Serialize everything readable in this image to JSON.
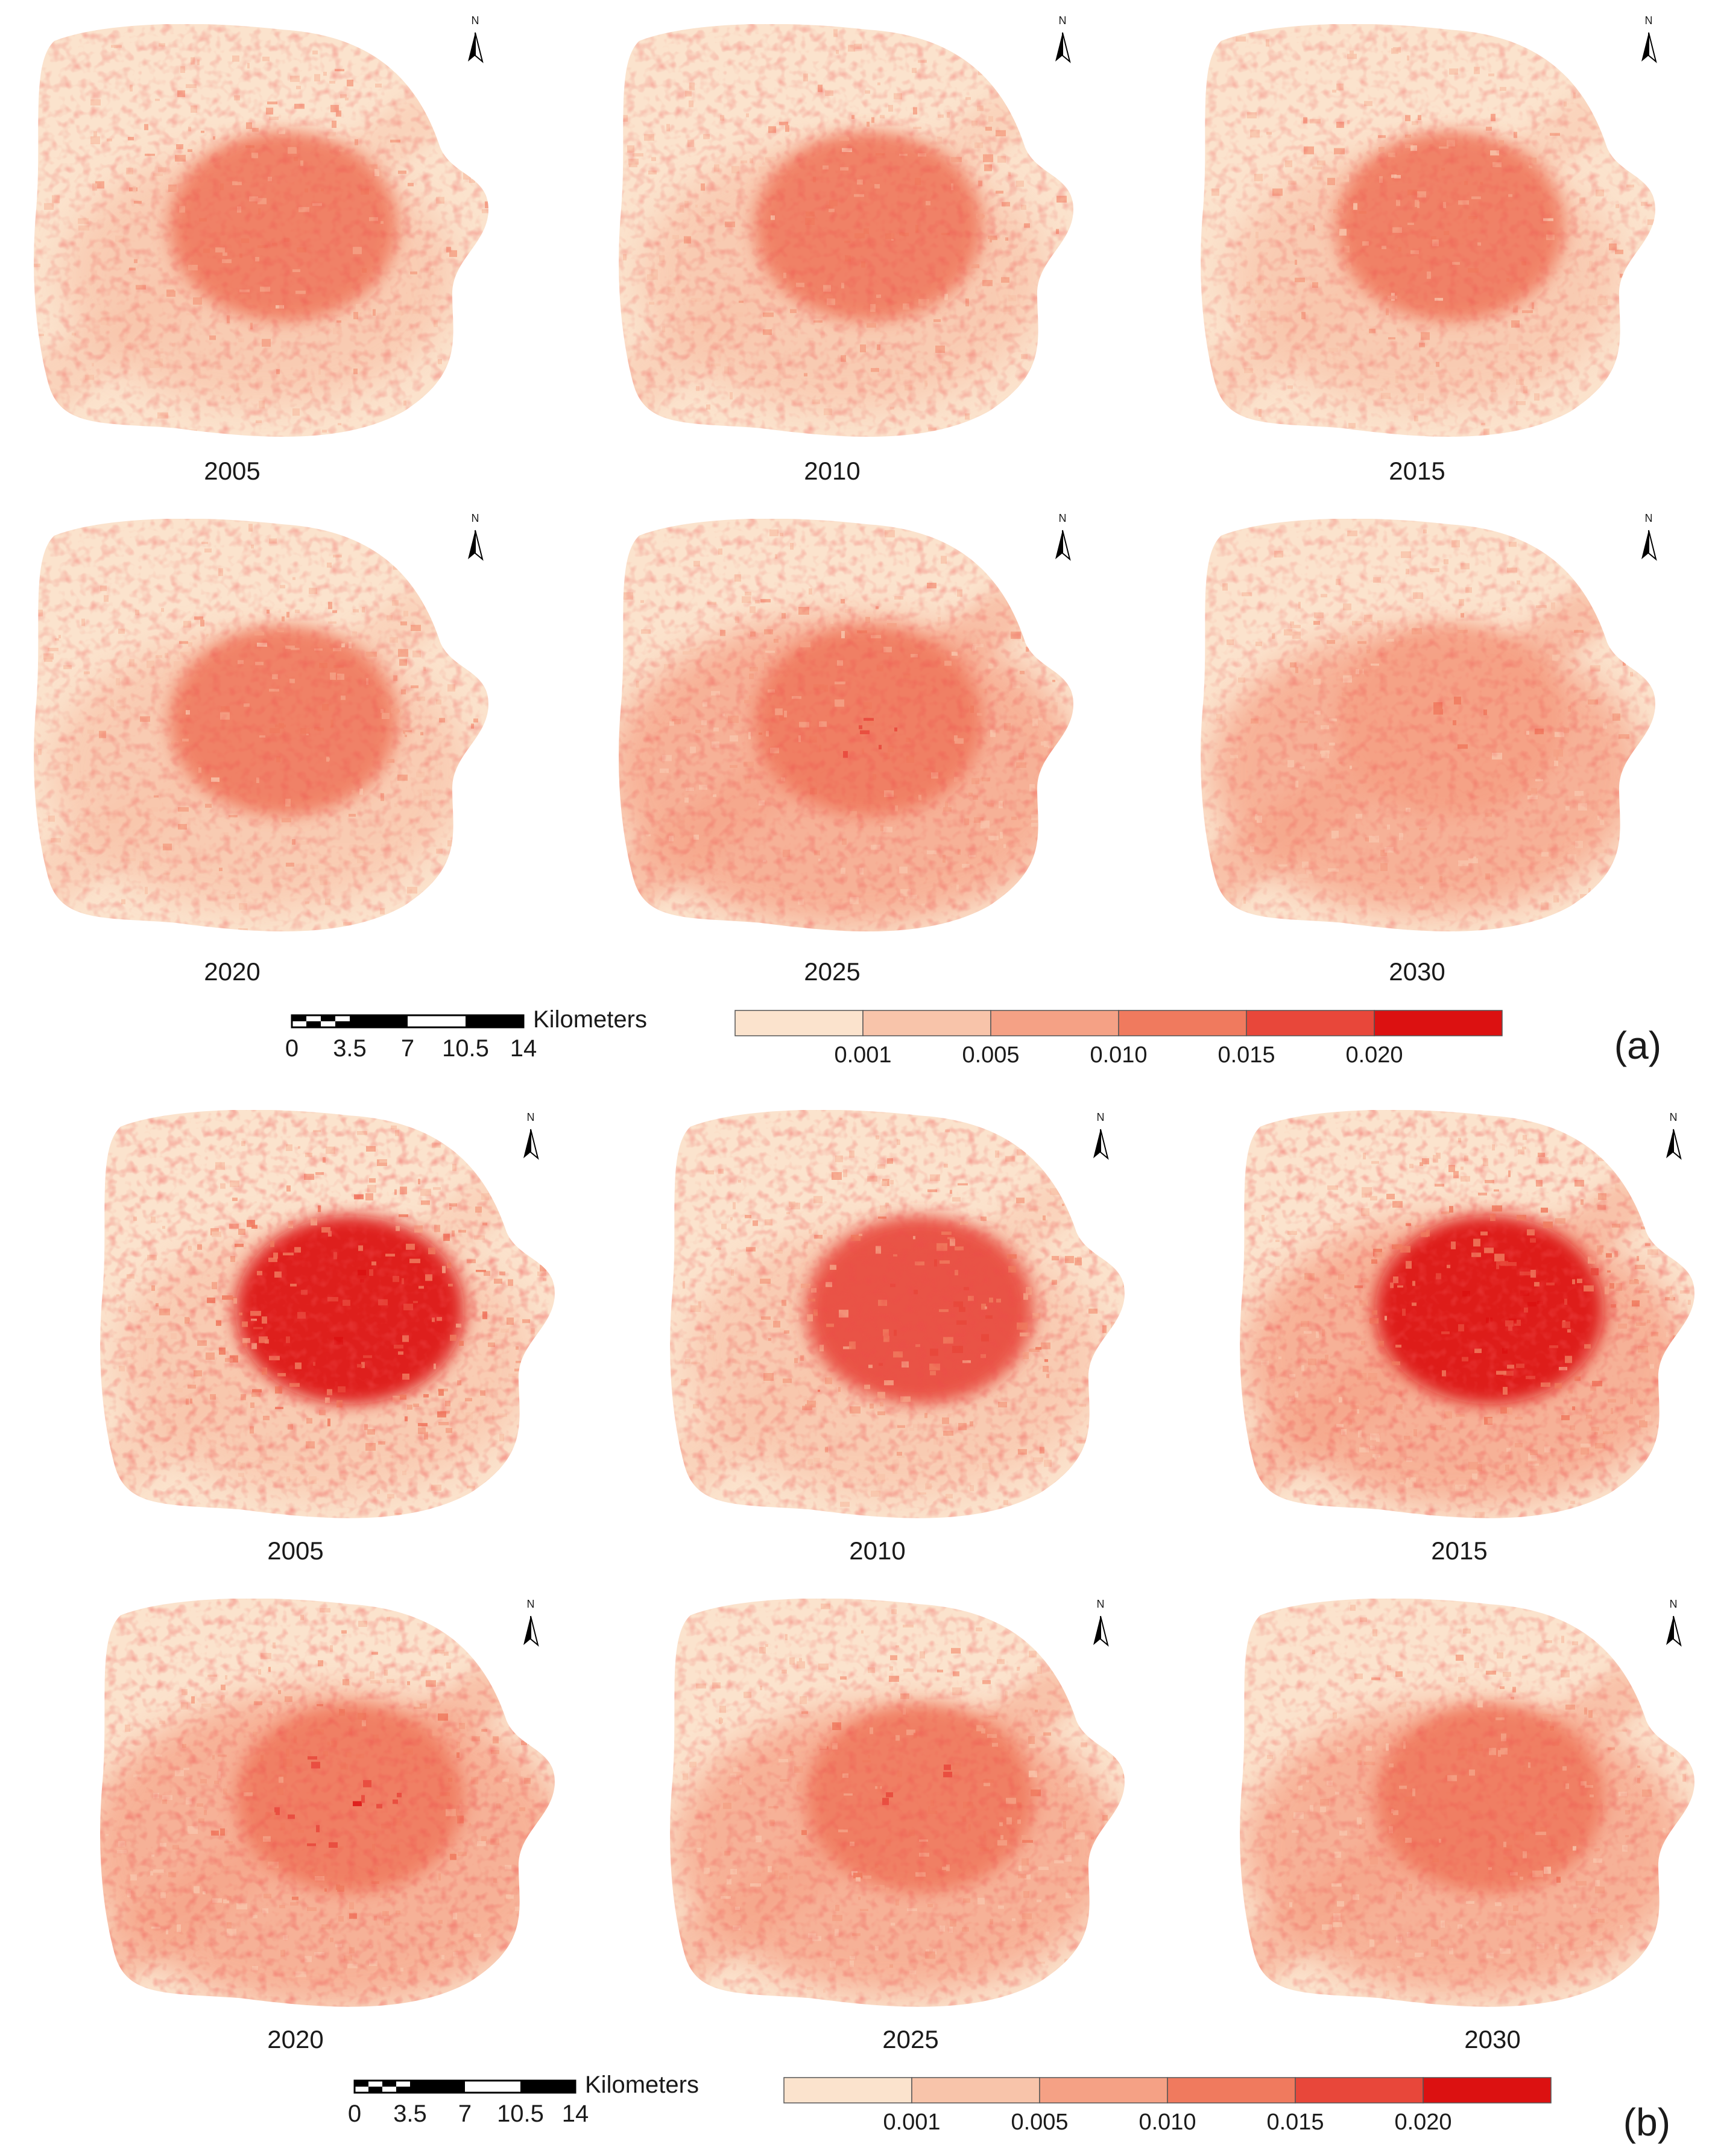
{
  "figure": {
    "panels": [
      {
        "label": "(a)",
        "maps": [
          {
            "year": "2005",
            "intensity": 0.45,
            "core": 0.55,
            "spread": 0.35
          },
          {
            "year": "2010",
            "intensity": 0.5,
            "core": 0.6,
            "spread": 0.4
          },
          {
            "year": "2015",
            "intensity": 0.4,
            "core": 0.55,
            "spread": 0.35
          },
          {
            "year": "2020",
            "intensity": 0.45,
            "core": 0.5,
            "spread": 0.45
          },
          {
            "year": "2025",
            "intensity": 0.55,
            "core": 0.55,
            "spread": 0.65
          },
          {
            "year": "2030",
            "intensity": 0.4,
            "core": 0.45,
            "spread": 0.5
          }
        ],
        "scale_bar": {
          "unit": "Kilometers",
          "ticks": [
            "0",
            "3.5",
            "7",
            "10.5",
            "14"
          ]
        },
        "legend": {
          "breaks": [
            "0.001",
            "0.005",
            "0.010",
            "0.015",
            "0.020"
          ]
        }
      },
      {
        "label": "(b)",
        "maps": [
          {
            "year": "2005",
            "intensity": 0.85,
            "core": 0.9,
            "spread": 0.45
          },
          {
            "year": "2010",
            "intensity": 0.7,
            "core": 0.8,
            "spread": 0.45
          },
          {
            "year": "2015",
            "intensity": 0.9,
            "core": 0.95,
            "spread": 0.55
          },
          {
            "year": "2020",
            "intensity": 0.75,
            "core": 0.6,
            "spread": 0.7
          },
          {
            "year": "2025",
            "intensity": 0.55,
            "core": 0.55,
            "spread": 0.55
          },
          {
            "year": "2030",
            "intensity": 0.5,
            "core": 0.5,
            "spread": 0.55
          }
        ],
        "scale_bar": {
          "unit": "Kilometers",
          "ticks": [
            "0",
            "3.5",
            "7",
            "10.5",
            "14"
          ]
        },
        "legend": {
          "breaks": [
            "0.001",
            "0.005",
            "0.010",
            "0.015",
            "0.020"
          ]
        }
      }
    ],
    "north_label": "N",
    "colors": {
      "class_0": "#fbe3cd",
      "class_1": "#f8c4aa",
      "class_2": "#f5a185",
      "class_3": "#f07a5e",
      "class_4": "#e8473a",
      "class_5": "#dc1111",
      "outline": "#000000"
    }
  }
}
